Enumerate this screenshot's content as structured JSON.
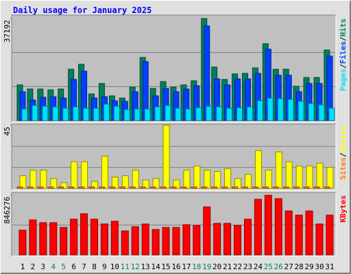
{
  "chart_data": {
    "type": "bar",
    "title": "Daily usage for January 2025",
    "categories": [
      "1",
      "2",
      "3",
      "4",
      "5",
      "6",
      "7",
      "8",
      "9",
      "10",
      "11",
      "12",
      "13",
      "14",
      "15",
      "16",
      "17",
      "18",
      "19",
      "20",
      "21",
      "22",
      "23",
      "24",
      "25",
      "26",
      "27",
      "28",
      "29",
      "30",
      "31"
    ],
    "category_colors": [
      "#000000",
      "#000000",
      "#000000",
      "#00805c",
      "#00805c",
      "#000000",
      "#000000",
      "#000000",
      "#000000",
      "#000000",
      "#00805c",
      "#00805c",
      "#000000",
      "#000000",
      "#000000",
      "#000000",
      "#000000",
      "#00805c",
      "#00805c",
      "#000000",
      "#000000",
      "#000000",
      "#000000",
      "#000000",
      "#00805c",
      "#00805c",
      "#000000",
      "#000000",
      "#000000",
      "#000000",
      "#000000"
    ],
    "label_separator": "/",
    "panels": [
      {
        "ylim": [
          0,
          37192
        ],
        "yticks": [
          37192
        ],
        "gridlines": [
          12397.33,
          24794.67
        ],
        "series": [
          {
            "name": "Hits",
            "color": "#00805c",
            "values": [
              13000,
              11500,
              11500,
              11200,
              11500,
              18700,
              20500,
              9700,
              13500,
              9000,
              8200,
              12200,
              23000,
              11700,
              14200,
              12200,
              13000,
              14500,
              37192,
              19500,
              15000,
              17000,
              17200,
              19200,
              28000,
              18700,
              18700,
              12500,
              15700,
              15700,
              25700
            ]
          },
          {
            "name": "Files",
            "color": "#0040ff",
            "values": [
              10500,
              7500,
              8500,
              8700,
              8200,
              15000,
              18000,
              8200,
              8700,
              7200,
              7000,
              10500,
              21500,
              9000,
              11700,
              10500,
              11500,
              12700,
              34500,
              15200,
              13000,
              15200,
              15200,
              17200,
              26000,
              16500,
              16500,
              10500,
              13500,
              13500,
              23500
            ]
          },
          {
            "name": "Pages",
            "color": "#00e0ff",
            "values": [
              4200,
              5500,
              5200,
              5000,
              4500,
              5000,
              4500,
              4500,
              6000,
              5200,
              4000,
              4200,
              4200,
              5000,
              5500,
              4500,
              4200,
              4700,
              5200,
              5000,
              4500,
              4700,
              5000,
              7200,
              8200,
              8000,
              7700,
              7000,
              6200,
              5700,
              4500
            ]
          }
        ]
      },
      {
        "ylim": [
          0,
          45
        ],
        "yticks": [
          45
        ],
        "gridlines": [
          15,
          30
        ],
        "series": [
          {
            "name": "Visits",
            "color": "#ffff00",
            "values": [
              9,
              13,
              13,
              7,
              4,
              19,
              19,
              5,
              23,
              8,
              9,
              13,
              6,
              7,
              45,
              6,
              13,
              16,
              13,
              12,
              14,
              7,
              10,
              27,
              13,
              26,
              19,
              16,
              16,
              18,
              15
            ]
          },
          {
            "name": "Sites",
            "color": "#ff8000",
            "values": [
              1,
              1,
              1,
              1,
              1,
              1,
              1,
              1,
              1,
              1,
              1,
              1,
              1,
              1,
              1,
              1,
              1,
              1,
              1,
              1,
              1,
              1,
              1,
              1,
              1,
              1,
              1,
              1,
              1,
              1,
              1
            ]
          }
        ]
      },
      {
        "ylim": [
          0,
          846276
        ],
        "yticks": [
          846276
        ],
        "gridlines": [
          423138
        ],
        "series": [
          {
            "name": "KBytes",
            "color": "#ff0000",
            "values": [
              350000,
              496000,
              457000,
              457000,
              389000,
              506000,
              584000,
              506000,
              438000,
              477000,
              340000,
              399000,
              438000,
              360000,
              389000,
              389000,
              428000,
              418000,
              681000,
              447000,
              447000,
              418000,
              506000,
              788000,
              846276,
              798000,
              623000,
              564000,
              623000,
              438000,
              564000
            ]
          }
        ]
      }
    ]
  }
}
